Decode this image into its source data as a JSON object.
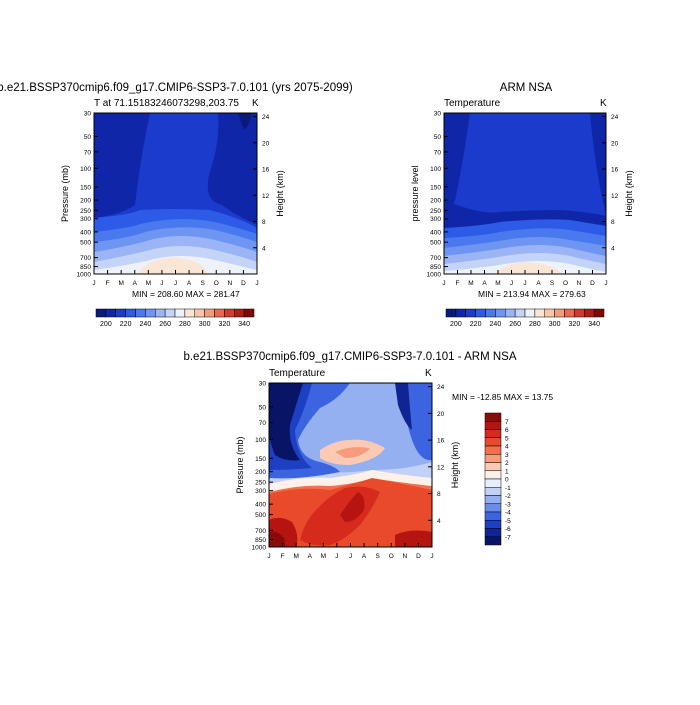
{
  "chart_data": [
    {
      "type": "heatmap",
      "title": "b.e21.BSSP370cmip6.f09_g17.CMIP6-SSP3-7.0.101 (yrs 2075-2099)",
      "left_label": "T at 71.15183246073298,203.75",
      "units": "K",
      "ylabel": "Pressure (mb)",
      "ylabel_right": "Height (km)",
      "x_ticks": [
        "J",
        "F",
        "M",
        "A",
        "M",
        "J",
        "J",
        "A",
        "S",
        "O",
        "N",
        "D",
        "J"
      ],
      "y_ticks": [
        "30",
        "50",
        "70",
        "100",
        "150",
        "200",
        "250",
        "300",
        "400",
        "500",
        "700",
        "850",
        "1000"
      ],
      "height_ticks": [
        "24",
        "20",
        "16",
        "12",
        "8",
        "4"
      ],
      "minmax": "MIN = 208.60  MAX = 281.47",
      "colorbar_labels": [
        "200",
        "220",
        "240",
        "260",
        "280",
        "300",
        "320",
        "340"
      ],
      "ylim": [
        1000,
        30
      ]
    },
    {
      "type": "heatmap",
      "title": "ARM NSA",
      "left_label": "Temperature",
      "units": "K",
      "ylabel": "pressure level",
      "ylabel_right": "Height (km)",
      "x_ticks": [
        "J",
        "F",
        "M",
        "A",
        "M",
        "J",
        "J",
        "A",
        "S",
        "O",
        "N",
        "D",
        "J"
      ],
      "y_ticks": [
        "30",
        "50",
        "70",
        "100",
        "150",
        "200",
        "250",
        "300",
        "400",
        "500",
        "700",
        "850",
        "1000"
      ],
      "height_ticks": [
        "24",
        "20",
        "16",
        "12",
        "8",
        "4"
      ],
      "minmax": "MIN = 213.94  MAX = 279.63",
      "colorbar_labels": [
        "200",
        "220",
        "240",
        "260",
        "280",
        "300",
        "320",
        "340"
      ],
      "ylim": [
        1000,
        30
      ]
    },
    {
      "type": "heatmap",
      "title": "b.e21.BSSP370cmip6.f09_g17.CMIP6-SSP3-7.0.101 - ARM NSA",
      "left_label": "Temperature",
      "units": "K",
      "ylabel": "Pressure (mb)",
      "ylabel_right": "Height (km)",
      "x_ticks": [
        "J",
        "F",
        "M",
        "A",
        "M",
        "J",
        "J",
        "A",
        "S",
        "O",
        "N",
        "D",
        "J"
      ],
      "y_ticks": [
        "30",
        "50",
        "70",
        "100",
        "150",
        "200",
        "250",
        "300",
        "400",
        "500",
        "700",
        "850",
        "1000"
      ],
      "height_ticks": [
        "24",
        "20",
        "16",
        "12",
        "8",
        "4"
      ],
      "minmax": "MIN = -12.85  MAX =  13.75",
      "colorbar_labels": [
        "7",
        "6",
        "5",
        "4",
        "3",
        "2",
        "1",
        "0",
        "-1",
        "-2",
        "-3",
        "-4",
        "-5",
        "-6",
        "-7"
      ],
      "ylim": [
        1000,
        30
      ]
    }
  ],
  "palettes": {
    "temperature": [
      "#0a1a7a",
      "#1026a8",
      "#1a3bcc",
      "#2d5ae6",
      "#4a78ef",
      "#6f95f3",
      "#9ab4f6",
      "#c4d4f9",
      "#eef2fb",
      "#fbe6d6",
      "#f8c5a8",
      "#f29c7a",
      "#e86a50",
      "#d43a2c",
      "#b01c14",
      "#7d0a08"
    ],
    "difference": [
      "#8b0a0a",
      "#b51410",
      "#d62a1c",
      "#ea4a2c",
      "#f3704c",
      "#f79b7c",
      "#fbcab4",
      "#fdf1ea",
      "#e8eefc",
      "#c1d1f7",
      "#94b0f1",
      "#6a8ceb",
      "#3d64e0",
      "#1d3fc4",
      "#0f2594",
      "#081566"
    ]
  }
}
